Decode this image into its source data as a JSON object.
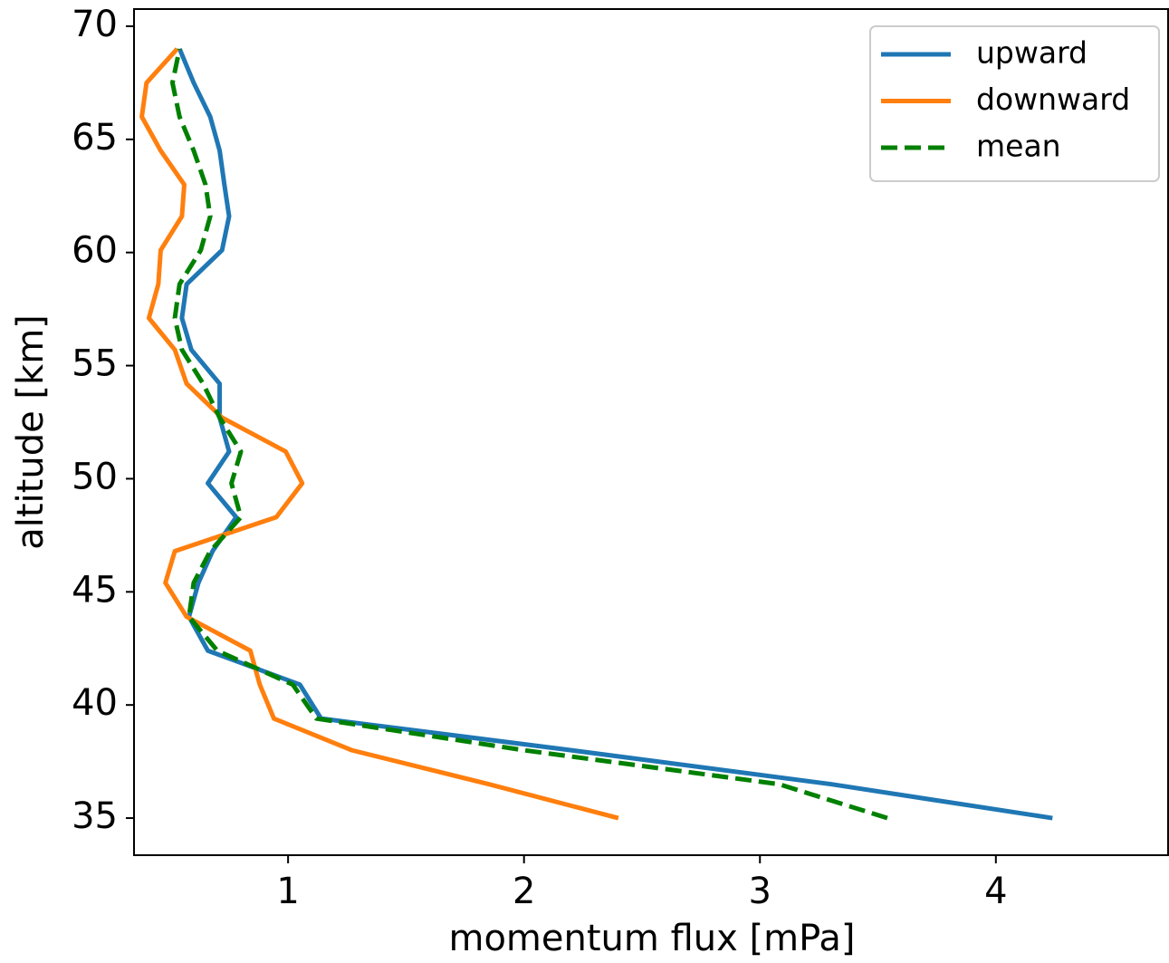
{
  "chart_data": {
    "type": "line",
    "xlabel": "momentum flux [mPa]",
    "ylabel": "altitude [km]",
    "y": [
      35,
      36.5,
      38,
      39.4,
      40.9,
      42.4,
      43.9,
      45.4,
      46.8,
      48.3,
      49.8,
      51.2,
      52.7,
      54.2,
      55.7,
      57.1,
      58.6,
      60.1,
      61.6,
      63.0,
      64.5,
      66.0,
      67.5,
      69.0
    ],
    "series": [
      {
        "name": "upward",
        "color": "#1f77b4",
        "dash": false,
        "values": [
          4.24,
          3.3,
          2.2,
          1.14,
          1.05,
          0.66,
          0.58,
          0.62,
          0.68,
          0.78,
          0.66,
          0.75,
          0.71,
          0.71,
          0.59,
          0.55,
          0.57,
          0.72,
          0.75,
          0.73,
          0.71,
          0.67,
          0.6,
          0.54
        ]
      },
      {
        "name": "downward",
        "color": "#ff7f0e",
        "dash": false,
        "values": [
          2.4,
          1.85,
          1.27,
          0.94,
          0.88,
          0.84,
          0.57,
          0.48,
          0.52,
          0.95,
          1.06,
          0.99,
          0.72,
          0.57,
          0.52,
          0.41,
          0.45,
          0.46,
          0.55,
          0.56,
          0.46,
          0.38,
          0.4,
          0.53
        ]
      },
      {
        "name": "mean",
        "color": "#008000",
        "dash": true,
        "values": [
          3.54,
          3.08,
          2.0,
          1.12,
          1.02,
          0.7,
          0.58,
          0.6,
          0.67,
          0.8,
          0.76,
          0.8,
          0.71,
          0.64,
          0.55,
          0.52,
          0.54,
          0.63,
          0.67,
          0.65,
          0.6,
          0.54,
          0.51,
          0.54
        ]
      }
    ],
    "xlim": [
      0.347,
      4.73
    ],
    "xticks": [
      1,
      2,
      3,
      4
    ],
    "ylim": [
      33.36,
      70.76
    ],
    "yticks": [
      35,
      40,
      45,
      50,
      55,
      60,
      65,
      70
    ],
    "legend": "upper right",
    "grid": false
  }
}
